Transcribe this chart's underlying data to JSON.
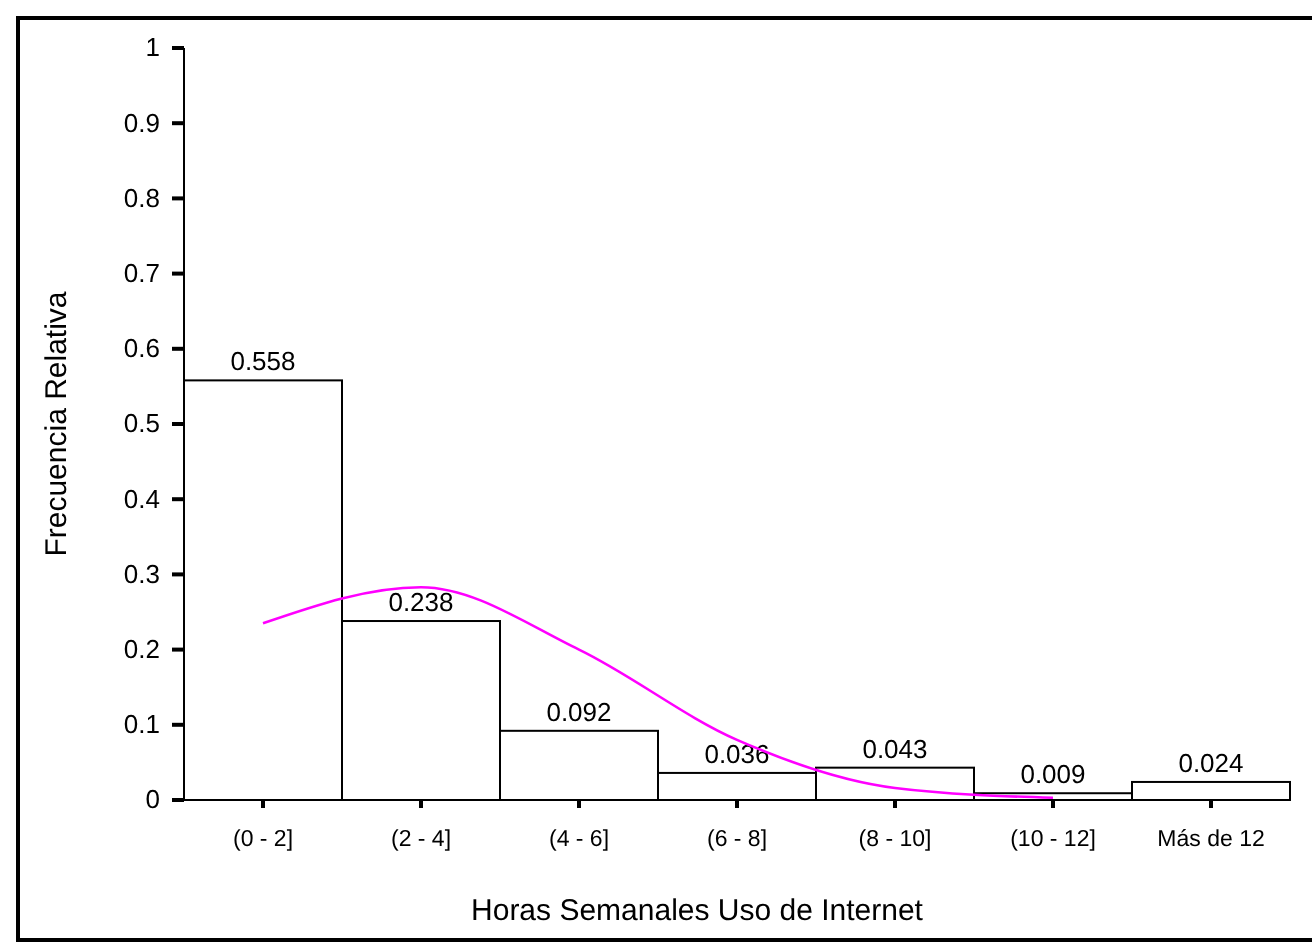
{
  "chart_data": {
    "type": "bar",
    "xlabel": "Horas Semanales Uso de Internet",
    "ylabel": "Frecuencia Relativa",
    "categories": [
      "(0 - 2]",
      "(2 - 4]",
      "(4 - 6]",
      "(6 - 8]",
      "(8 - 10]",
      "(10 - 12]",
      "Más de 12"
    ],
    "series": [
      {
        "color": "#ffffff",
        "values": [
          0.558,
          0.238,
          0.092,
          0.036,
          0.043,
          0.009,
          0.024
        ],
        "value_labels": [
          "0.558",
          "0.238",
          "0.092",
          "0.036",
          "0.043",
          "0.009",
          "0.024"
        ]
      },
      {
        "type": "line",
        "color": "#ff00ff",
        "values": [
          0.235,
          0.283,
          0.2,
          0.08,
          0.016,
          0.003,
          null
        ]
      }
    ],
    "ylim": [
      0,
      1
    ],
    "yticks": [
      0,
      0.1,
      0.2,
      0.3,
      0.4,
      0.5,
      0.6,
      0.7,
      0.8,
      0.9,
      1
    ],
    "grid": false
  }
}
